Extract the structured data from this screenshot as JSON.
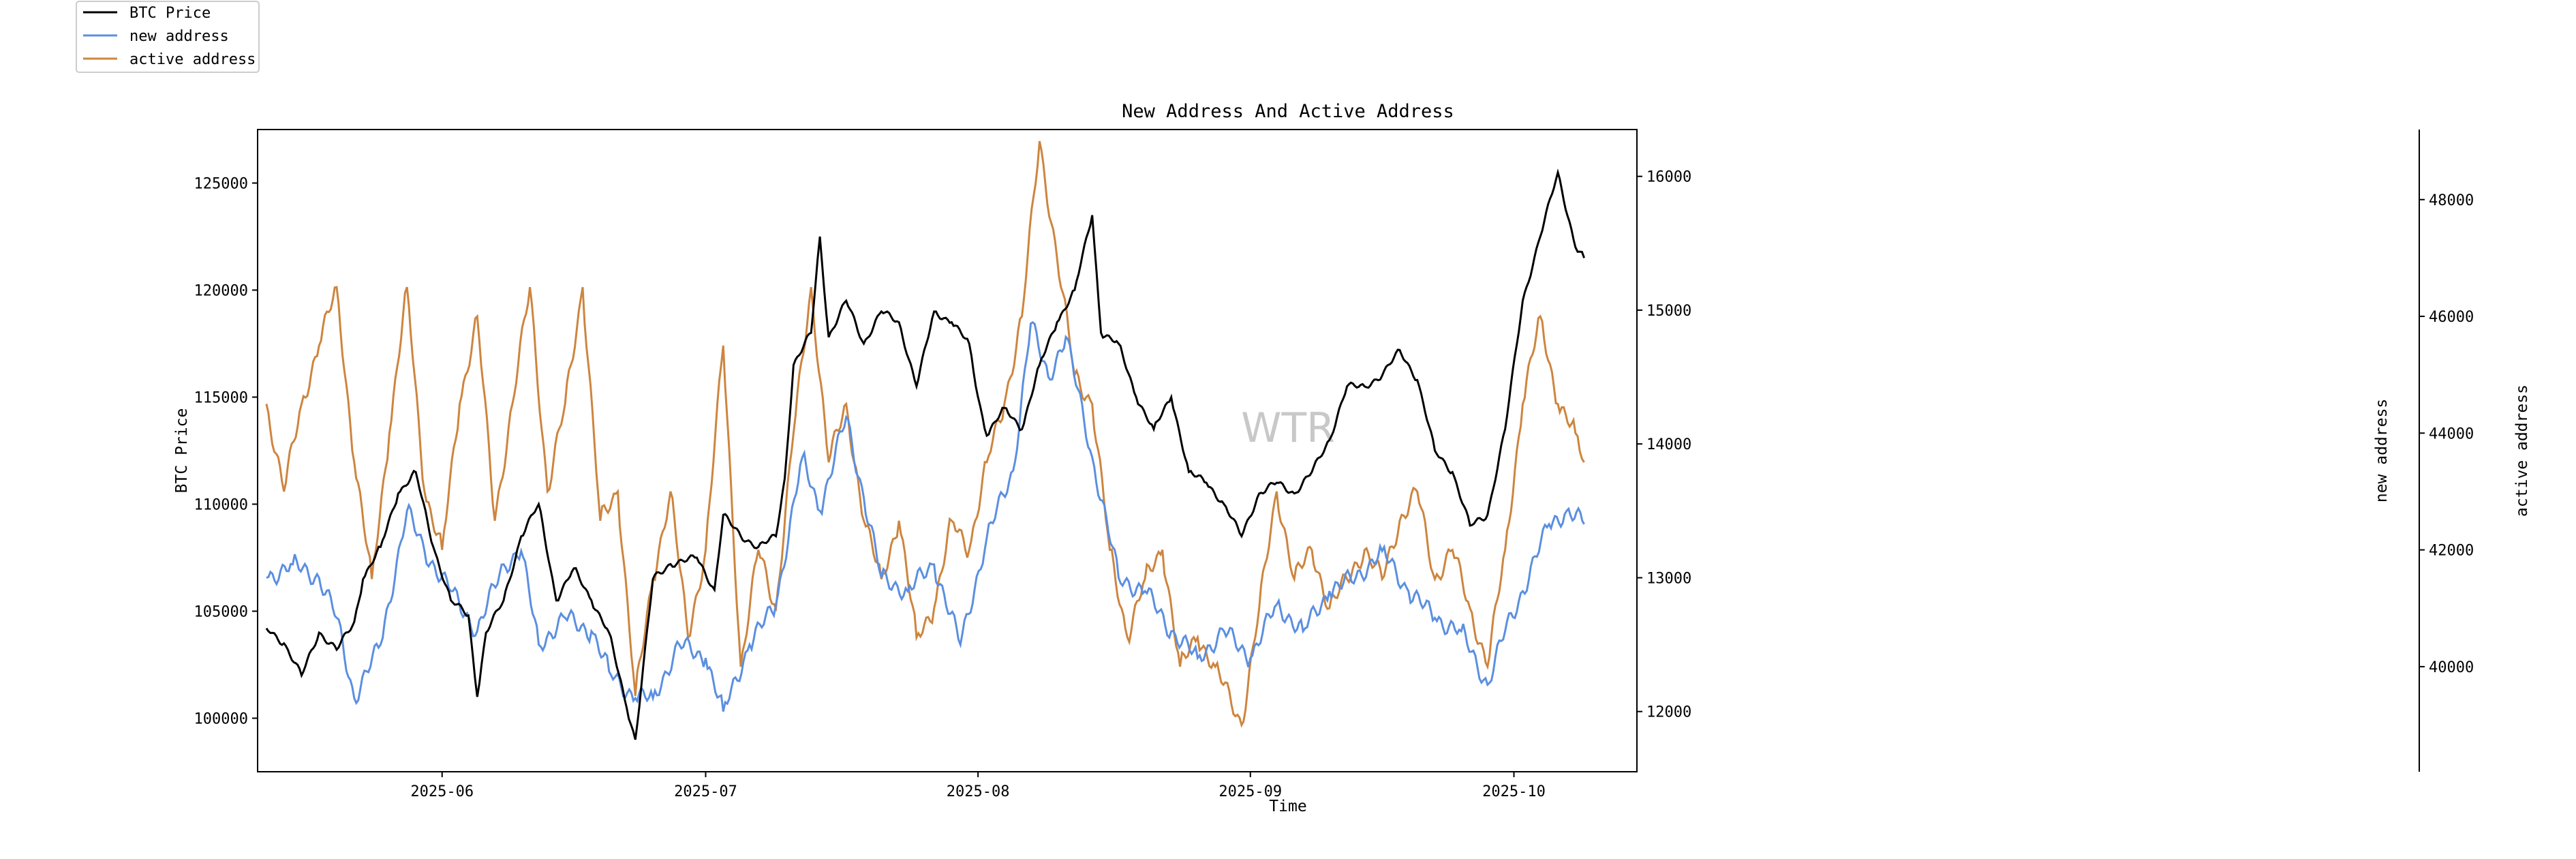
{
  "chart_data": {
    "type": "line",
    "title": "New Address And Active Address",
    "xlabel": "Time",
    "watermark": "WTR",
    "x_ticks": [
      "2025-06",
      "2025-07",
      "2025-08",
      "2025-09",
      "2025-10"
    ],
    "x_range": [
      "2025-05-11",
      "2025-10-15"
    ],
    "legend_position": "top-left (outside plot)",
    "grid": false,
    "axes": [
      {
        "id": "btc",
        "label": "BTC Price",
        "side": "left",
        "range": [
          97500,
          127500
        ],
        "ticks": [
          "100000",
          "105000",
          "110000",
          "115000",
          "120000",
          "125000"
        ]
      },
      {
        "id": "new",
        "label": "new address",
        "side": "right",
        "range": [
          11550,
          16350
        ],
        "ticks": [
          "12000",
          "13000",
          "14000",
          "15000",
          "16000"
        ]
      },
      {
        "id": "active",
        "label": "active address",
        "side": "right-outer",
        "range": [
          38200,
          49200
        ],
        "ticks": [
          "40000",
          "42000",
          "44000",
          "46000",
          "48000"
        ]
      }
    ],
    "series": [
      {
        "name": "BTC Price",
        "axis": "btc",
        "color": "#000000",
        "points": [
          [
            "2025-05-12",
            104200
          ],
          [
            "2025-05-14",
            103500
          ],
          [
            "2025-05-16",
            102000
          ],
          [
            "2025-05-18",
            104000
          ],
          [
            "2025-05-20",
            103200
          ],
          [
            "2025-05-22",
            104500
          ],
          [
            "2025-05-23",
            106500
          ],
          [
            "2025-05-25",
            108000
          ],
          [
            "2025-05-27",
            110500
          ],
          [
            "2025-05-29",
            111500
          ],
          [
            "2025-05-31",
            108000
          ],
          [
            "2025-06-02",
            105500
          ],
          [
            "2025-06-04",
            104800
          ],
          [
            "2025-06-05",
            101000
          ],
          [
            "2025-06-06",
            104000
          ],
          [
            "2025-06-08",
            105500
          ],
          [
            "2025-06-10",
            108500
          ],
          [
            "2025-06-12",
            110000
          ],
          [
            "2025-06-14",
            105500
          ],
          [
            "2025-06-16",
            107000
          ],
          [
            "2025-06-18",
            105500
          ],
          [
            "2025-06-20",
            104000
          ],
          [
            "2025-06-22",
            100500
          ],
          [
            "2025-06-23",
            99000
          ],
          [
            "2025-06-25",
            106500
          ],
          [
            "2025-06-27",
            107200
          ],
          [
            "2025-06-30",
            107500
          ],
          [
            "2025-07-02",
            106000
          ],
          [
            "2025-07-03",
            109500
          ],
          [
            "2025-07-05",
            108500
          ],
          [
            "2025-07-07",
            108000
          ],
          [
            "2025-07-09",
            108500
          ],
          [
            "2025-07-10",
            111200
          ],
          [
            "2025-07-11",
            116500
          ],
          [
            "2025-07-13",
            118000
          ],
          [
            "2025-07-14",
            122500
          ],
          [
            "2025-07-15",
            117800
          ],
          [
            "2025-07-17",
            119500
          ],
          [
            "2025-07-19",
            117500
          ],
          [
            "2025-07-21",
            119000
          ],
          [
            "2025-07-23",
            118500
          ],
          [
            "2025-07-25",
            115500
          ],
          [
            "2025-07-27",
            119000
          ],
          [
            "2025-07-29",
            118500
          ],
          [
            "2025-07-31",
            117500
          ],
          [
            "2025-08-01",
            115000
          ],
          [
            "2025-08-02",
            113200
          ],
          [
            "2025-08-04",
            114500
          ],
          [
            "2025-08-06",
            113500
          ],
          [
            "2025-08-08",
            116500
          ],
          [
            "2025-08-10",
            118500
          ],
          [
            "2025-08-12",
            120000
          ],
          [
            "2025-08-14",
            123500
          ],
          [
            "2025-08-15",
            118000
          ],
          [
            "2025-08-17",
            117500
          ],
          [
            "2025-08-19",
            115000
          ],
          [
            "2025-08-21",
            113500
          ],
          [
            "2025-08-23",
            115000
          ],
          [
            "2025-08-25",
            111500
          ],
          [
            "2025-08-27",
            111000
          ],
          [
            "2025-08-29",
            110000
          ],
          [
            "2025-08-31",
            108500
          ],
          [
            "2025-09-02",
            110500
          ],
          [
            "2025-09-04",
            111000
          ],
          [
            "2025-09-06",
            110500
          ],
          [
            "2025-09-08",
            111500
          ],
          [
            "2025-09-10",
            113000
          ],
          [
            "2025-09-12",
            115500
          ],
          [
            "2025-09-14",
            115500
          ],
          [
            "2025-09-16",
            116000
          ],
          [
            "2025-09-18",
            117200
          ],
          [
            "2025-09-20",
            115800
          ],
          [
            "2025-09-22",
            112500
          ],
          [
            "2025-09-24",
            111500
          ],
          [
            "2025-09-26",
            109000
          ],
          [
            "2025-09-28",
            109500
          ],
          [
            "2025-09-30",
            113500
          ],
          [
            "2025-10-02",
            119500
          ],
          [
            "2025-10-04",
            122500
          ],
          [
            "2025-10-06",
            125500
          ],
          [
            "2025-10-08",
            122000
          ],
          [
            "2025-10-09",
            121500
          ]
        ]
      },
      {
        "name": "new address",
        "axis": "new",
        "color": "#5b8fe0",
        "points": [
          [
            "2025-05-12",
            13000
          ],
          [
            "2025-05-15",
            13100
          ],
          [
            "2025-05-18",
            13000
          ],
          [
            "2025-05-20",
            12700
          ],
          [
            "2025-05-22",
            12100
          ],
          [
            "2025-05-25",
            12500
          ],
          [
            "2025-05-28",
            13500
          ],
          [
            "2025-05-30",
            13200
          ],
          [
            "2025-06-02",
            12900
          ],
          [
            "2025-06-05",
            12600
          ],
          [
            "2025-06-08",
            13100
          ],
          [
            "2025-06-10",
            13200
          ],
          [
            "2025-06-12",
            12500
          ],
          [
            "2025-06-15",
            12700
          ],
          [
            "2025-06-18",
            12600
          ],
          [
            "2025-06-20",
            12300
          ],
          [
            "2025-06-23",
            12100
          ],
          [
            "2025-06-25",
            12100
          ],
          [
            "2025-06-28",
            12500
          ],
          [
            "2025-07-01",
            12400
          ],
          [
            "2025-07-03",
            12000
          ],
          [
            "2025-07-06",
            12500
          ],
          [
            "2025-07-09",
            12800
          ],
          [
            "2025-07-12",
            13900
          ],
          [
            "2025-07-14",
            13500
          ],
          [
            "2025-07-17",
            14200
          ],
          [
            "2025-07-19",
            13600
          ],
          [
            "2025-07-21",
            13000
          ],
          [
            "2025-07-24",
            12900
          ],
          [
            "2025-07-27",
            13100
          ],
          [
            "2025-07-30",
            12500
          ],
          [
            "2025-08-02",
            13300
          ],
          [
            "2025-08-05",
            13800
          ],
          [
            "2025-08-07",
            14900
          ],
          [
            "2025-08-09",
            14500
          ],
          [
            "2025-08-11",
            14800
          ],
          [
            "2025-08-14",
            13900
          ],
          [
            "2025-08-17",
            13000
          ],
          [
            "2025-08-20",
            12900
          ],
          [
            "2025-08-23",
            12600
          ],
          [
            "2025-08-26",
            12400
          ],
          [
            "2025-08-29",
            12600
          ],
          [
            "2025-09-01",
            12400
          ],
          [
            "2025-09-04",
            12800
          ],
          [
            "2025-09-07",
            12600
          ],
          [
            "2025-09-10",
            12900
          ],
          [
            "2025-09-13",
            13000
          ],
          [
            "2025-09-16",
            13200
          ],
          [
            "2025-09-19",
            12900
          ],
          [
            "2025-09-22",
            12700
          ],
          [
            "2025-09-25",
            12600
          ],
          [
            "2025-09-28",
            12200
          ],
          [
            "2025-09-30",
            12600
          ],
          [
            "2025-10-02",
            12900
          ],
          [
            "2025-10-05",
            13400
          ],
          [
            "2025-10-07",
            13500
          ],
          [
            "2025-10-09",
            13400
          ]
        ]
      },
      {
        "name": "active address",
        "axis": "active",
        "color": "#cd853f",
        "points": [
          [
            "2025-05-12",
            44500
          ],
          [
            "2025-05-14",
            43000
          ],
          [
            "2025-05-16",
            44500
          ],
          [
            "2025-05-18",
            45500
          ],
          [
            "2025-05-20",
            46500
          ],
          [
            "2025-05-22",
            43500
          ],
          [
            "2025-05-24",
            41500
          ],
          [
            "2025-05-26",
            44000
          ],
          [
            "2025-05-28",
            46500
          ],
          [
            "2025-05-30",
            43000
          ],
          [
            "2025-06-01",
            42000
          ],
          [
            "2025-06-03",
            44500
          ],
          [
            "2025-06-05",
            46000
          ],
          [
            "2025-06-07",
            42500
          ],
          [
            "2025-06-09",
            44500
          ],
          [
            "2025-06-11",
            46500
          ],
          [
            "2025-06-13",
            43000
          ],
          [
            "2025-06-15",
            44500
          ],
          [
            "2025-06-17",
            46500
          ],
          [
            "2025-06-19",
            42500
          ],
          [
            "2025-06-21",
            43000
          ],
          [
            "2025-06-23",
            39500
          ],
          [
            "2025-06-25",
            41500
          ],
          [
            "2025-06-27",
            43000
          ],
          [
            "2025-06-29",
            40500
          ],
          [
            "2025-07-01",
            42000
          ],
          [
            "2025-07-03",
            45500
          ],
          [
            "2025-07-05",
            40000
          ],
          [
            "2025-07-07",
            42000
          ],
          [
            "2025-07-09",
            41000
          ],
          [
            "2025-07-11",
            44000
          ],
          [
            "2025-07-13",
            46500
          ],
          [
            "2025-07-15",
            43500
          ],
          [
            "2025-07-17",
            44500
          ],
          [
            "2025-07-19",
            42500
          ],
          [
            "2025-07-21",
            41500
          ],
          [
            "2025-07-23",
            42500
          ],
          [
            "2025-07-25",
            40500
          ],
          [
            "2025-07-27",
            41000
          ],
          [
            "2025-07-29",
            42500
          ],
          [
            "2025-07-31",
            42000
          ],
          [
            "2025-08-02",
            43500
          ],
          [
            "2025-08-04",
            44500
          ],
          [
            "2025-08-06",
            46000
          ],
          [
            "2025-08-08",
            49000
          ],
          [
            "2025-08-10",
            47000
          ],
          [
            "2025-08-12",
            45000
          ],
          [
            "2025-08-14",
            44500
          ],
          [
            "2025-08-16",
            42000
          ],
          [
            "2025-08-18",
            40500
          ],
          [
            "2025-08-20",
            41500
          ],
          [
            "2025-08-22",
            42000
          ],
          [
            "2025-08-24",
            40000
          ],
          [
            "2025-08-26",
            40500
          ],
          [
            "2025-08-28",
            40000
          ],
          [
            "2025-08-31",
            39000
          ],
          [
            "2025-09-02",
            41000
          ],
          [
            "2025-09-04",
            43000
          ],
          [
            "2025-09-06",
            41500
          ],
          [
            "2025-09-08",
            42000
          ],
          [
            "2025-09-10",
            41000
          ],
          [
            "2025-09-12",
            41500
          ],
          [
            "2025-09-14",
            42000
          ],
          [
            "2025-09-16",
            41500
          ],
          [
            "2025-09-18",
            42500
          ],
          [
            "2025-09-20",
            43000
          ],
          [
            "2025-09-22",
            41500
          ],
          [
            "2025-09-24",
            42000
          ],
          [
            "2025-09-26",
            41000
          ],
          [
            "2025-09-28",
            40000
          ],
          [
            "2025-09-30",
            42000
          ],
          [
            "2025-10-02",
            44500
          ],
          [
            "2025-10-04",
            46000
          ],
          [
            "2025-10-06",
            44500
          ],
          [
            "2025-10-08",
            44000
          ],
          [
            "2025-10-09",
            43500
          ]
        ]
      }
    ]
  }
}
